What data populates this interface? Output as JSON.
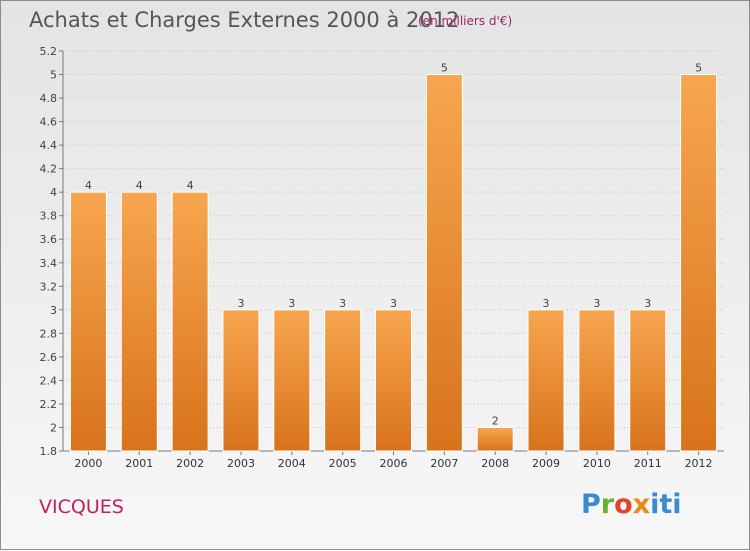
{
  "header": {
    "title": "Achats et Charges Externes 2000 à 2012",
    "subtitle": "(en milliers d'€)"
  },
  "footer": {
    "commune": "VICQUES",
    "logo_text": "Proxiti"
  },
  "colors": {
    "bar_light": "#f7a64f",
    "bar_dark": "#d8731c",
    "bar_outline": "#ffffff",
    "title": "#555555",
    "accent": "#c0215f"
  },
  "chart_data": {
    "type": "bar",
    "categories": [
      "2000",
      "2001",
      "2002",
      "2003",
      "2004",
      "2005",
      "2006",
      "2007",
      "2008",
      "2009",
      "2010",
      "2011",
      "2012"
    ],
    "values": [
      4,
      4,
      4,
      3,
      3,
      3,
      3,
      5,
      2,
      3,
      3,
      3,
      5
    ],
    "value_labels": [
      "4",
      "4",
      "4",
      "3",
      "3",
      "3",
      "3",
      "5",
      "2",
      "3",
      "3",
      "3",
      "5"
    ],
    "title": "Achats et Charges Externes 2000 à 2012",
    "subtitle": "(en milliers d'€)",
    "xlabel": "",
    "ylabel": "",
    "ylim": [
      1.8,
      5.2
    ],
    "yticks": [
      1.8,
      2,
      2.2,
      2.4,
      2.6,
      2.8,
      3,
      3.2,
      3.4,
      3.6,
      3.8,
      4,
      4.2,
      4.4,
      4.6,
      4.8,
      5,
      5.2
    ],
    "ytick_labels": [
      "1.8",
      "2",
      "2.2",
      "2.4",
      "2.6",
      "2.8",
      "3",
      "3.2",
      "3.4",
      "3.6",
      "3.8",
      "4",
      "4.2",
      "4.4",
      "4.6",
      "4.8",
      "5",
      "5.2"
    ],
    "grid": true,
    "legend": "none"
  }
}
